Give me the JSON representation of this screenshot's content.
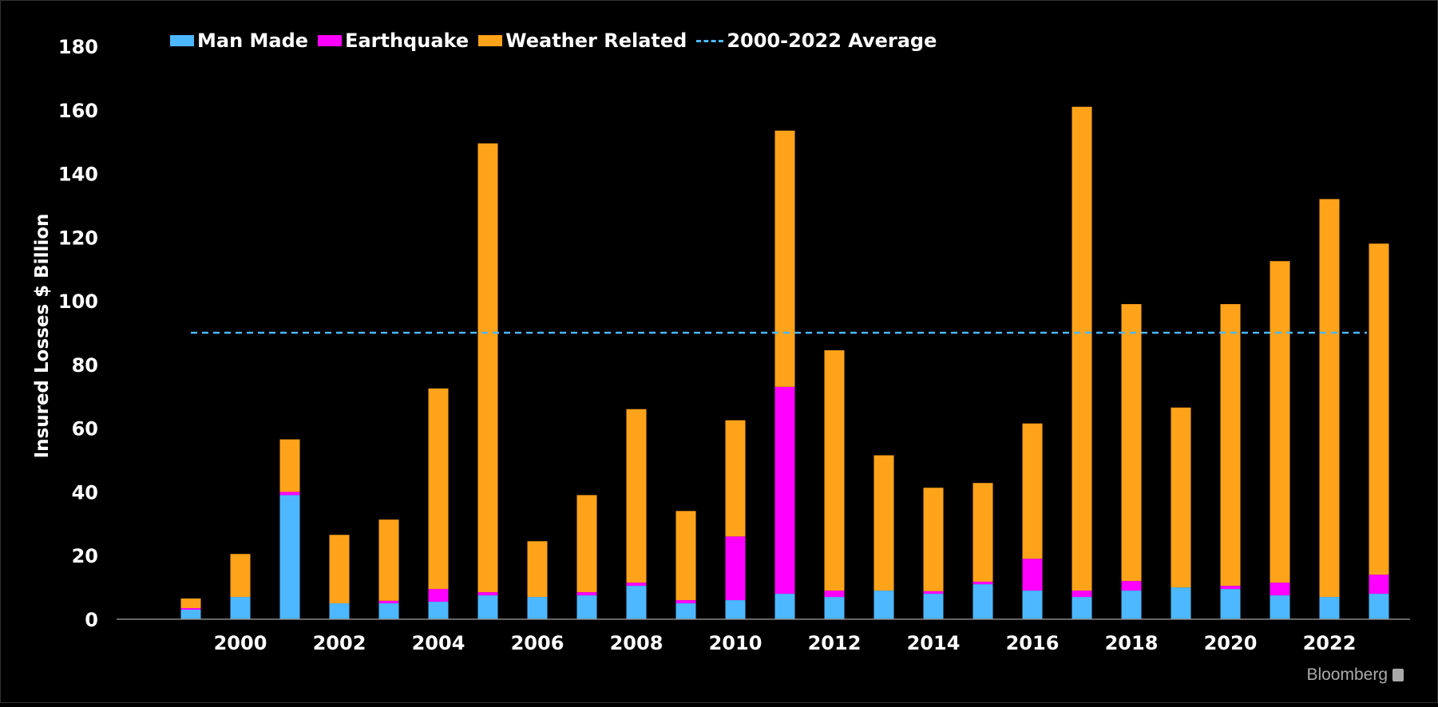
{
  "chart_data": {
    "type": "bar",
    "stacked": true,
    "ylabel": "Insured Losses $ Billion",
    "xlabel": "",
    "ylim": [
      0,
      180
    ],
    "yticks": [
      0,
      20,
      40,
      60,
      80,
      100,
      120,
      140,
      160,
      180
    ],
    "x_tick_labels": [
      "2000",
      "2002",
      "2004",
      "2006",
      "2008",
      "2010",
      "2012",
      "2014",
      "2016",
      "2018",
      "2020",
      "2022"
    ],
    "categories": [
      "1999",
      "2000",
      "2001",
      "2002",
      "2003",
      "2004",
      "2005",
      "2006",
      "2007",
      "2008",
      "2009",
      "2010",
      "2011",
      "2012",
      "2013",
      "2014",
      "2015",
      "2016",
      "2017",
      "2018",
      "2019",
      "2020",
      "2021",
      "2022",
      "2023"
    ],
    "series": [
      {
        "name": "Man Made",
        "color": "#4db8ff",
        "values": [
          3,
          7,
          39,
          5,
          5,
          5.5,
          7.5,
          7,
          7.5,
          10.5,
          5,
          6,
          8,
          7,
          9,
          8,
          11,
          9,
          7,
          9,
          10,
          9.5,
          7.5,
          7,
          8
        ]
      },
      {
        "name": "Earthquake",
        "color": "#ff00ff",
        "values": [
          0.5,
          0,
          1,
          0,
          0.8,
          4,
          1,
          0,
          1,
          1,
          1,
          20,
          65,
          2,
          0,
          0.8,
          0.8,
          10,
          2,
          3,
          0,
          1,
          4,
          0,
          6
        ]
      },
      {
        "name": "Weather Related",
        "color": "#ffa31a",
        "values": [
          3,
          13.5,
          16.5,
          21.5,
          25.5,
          63,
          141,
          17.5,
          30.5,
          54.5,
          28,
          36.5,
          80.5,
          75.5,
          42.5,
          32.5,
          31,
          42.5,
          152,
          87,
          56.5,
          88.5,
          101,
          125,
          104
        ]
      }
    ],
    "average_line": {
      "name": "2000-2022 Average",
      "value": 90,
      "color": "#4db8ff"
    },
    "grid": false,
    "legend_position": "top-left"
  },
  "branding": {
    "source": "Bloomberg"
  }
}
